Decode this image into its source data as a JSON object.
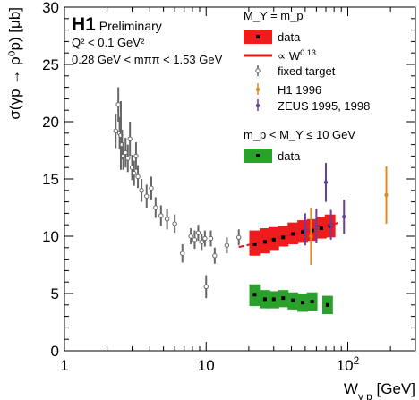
{
  "chart_data": {
    "type": "scatter",
    "xscale": "log",
    "xlim": [
      1,
      300
    ],
    "ylim": [
      0,
      30
    ],
    "xlabel": "W",
    "xlabel_sub": "γ p",
    "xlabel_unit": "[GeV]",
    "ylabel": "σ(γp → ρ⁰p) [μb]",
    "x_ticks": [
      {
        "value": 1,
        "base": "1",
        "exp": ""
      },
      {
        "value": 10,
        "base": "10",
        "exp": ""
      },
      {
        "value": 100,
        "base": "10",
        "exp": "2"
      }
    ],
    "y_ticks": [
      {
        "value": 0,
        "label": "0"
      },
      {
        "value": 5,
        "label": "5"
      },
      {
        "value": 10,
        "label": "10"
      },
      {
        "value": 15,
        "label": "15"
      },
      {
        "value": 20,
        "label": "20"
      },
      {
        "value": 25,
        "label": "25"
      },
      {
        "value": 30,
        "label": "30"
      }
    ],
    "header": {
      "experiment": "H1",
      "status": "Preliminary",
      "q2_cut": "Q² < 0.1 GeV²",
      "mass_window": "0.28 GeV < mππ < 1.53 GeV"
    },
    "legend_heading_elastic": "M_Y = m_p",
    "legend_heading_pdiss": "m_p < M_Y ≤ 10 GeV",
    "legend_placement": "top-right",
    "colors": {
      "elastic_fill": "#ee1c1c",
      "pdiss_fill": "#2ca02c",
      "fit_line": "#d81b1b",
      "fixed_target": "#666666",
      "h1_1996": "#e08a1e",
      "zeus": "#6a3d9a"
    },
    "series": [
      {
        "name": "data",
        "group": "elastic",
        "style": "box",
        "points": [
          {
            "x": 22,
            "y": 9.3,
            "lo": 8.3,
            "hi": 10.5
          },
          {
            "x": 26,
            "y": 9.5,
            "lo": 8.5,
            "hi": 10.7
          },
          {
            "x": 30,
            "y": 9.7,
            "lo": 8.8,
            "hi": 10.8
          },
          {
            "x": 35,
            "y": 9.9,
            "lo": 9.1,
            "hi": 10.9
          },
          {
            "x": 41,
            "y": 10.2,
            "lo": 9.3,
            "hi": 11.2
          },
          {
            "x": 48,
            "y": 10.4,
            "lo": 9.5,
            "hi": 11.4
          },
          {
            "x": 56,
            "y": 10.5,
            "lo": 9.6,
            "hi": 11.5
          },
          {
            "x": 65,
            "y": 10.7,
            "lo": 9.8,
            "hi": 11.7
          },
          {
            "x": 75,
            "y": 10.9,
            "lo": 9.9,
            "hi": 11.9
          }
        ]
      },
      {
        "name": "∝ W",
        "exponent": "0.13",
        "group": "elastic",
        "style": "fit",
        "x": [
          17,
          85
        ],
        "norm_x": 30,
        "norm_y": 9.75,
        "power": 0.13
      },
      {
        "name": "fixed target",
        "group": "elastic",
        "style": "open",
        "points": [
          {
            "x": 2.3,
            "y": 19.2,
            "err": 1.5
          },
          {
            "x": 2.4,
            "y": 21.5,
            "err": 1.5
          },
          {
            "x": 2.45,
            "y": 19.0,
            "err": 1.4
          },
          {
            "x": 2.5,
            "y": 18.8,
            "err": 3.0
          },
          {
            "x": 2.55,
            "y": 18.0,
            "err": 1.3
          },
          {
            "x": 2.6,
            "y": 17.0,
            "err": 1.2
          },
          {
            "x": 2.7,
            "y": 17.3,
            "err": 1.3
          },
          {
            "x": 2.8,
            "y": 16.8,
            "err": 1.2
          },
          {
            "x": 2.9,
            "y": 18.5,
            "err": 1.5
          },
          {
            "x": 3.0,
            "y": 16.0,
            "err": 1.1
          },
          {
            "x": 3.1,
            "y": 15.5,
            "err": 1.1
          },
          {
            "x": 3.2,
            "y": 17.0,
            "err": 1.2
          },
          {
            "x": 3.3,
            "y": 15.2,
            "err": 1.0
          },
          {
            "x": 3.5,
            "y": 14.0,
            "err": 1.0
          },
          {
            "x": 3.8,
            "y": 13.5,
            "err": 1.0
          },
          {
            "x": 4.1,
            "y": 14.2,
            "err": 1.0
          },
          {
            "x": 4.4,
            "y": 12.5,
            "err": 0.9
          },
          {
            "x": 4.8,
            "y": 11.8,
            "err": 0.9
          },
          {
            "x": 5.3,
            "y": 11.5,
            "err": 0.9
          },
          {
            "x": 6.0,
            "y": 11.1,
            "err": 0.8
          },
          {
            "x": 6.8,
            "y": 8.5,
            "err": 0.8
          },
          {
            "x": 7.8,
            "y": 10.0,
            "err": 0.7
          },
          {
            "x": 8.3,
            "y": 9.7,
            "err": 0.8
          },
          {
            "x": 8.8,
            "y": 10.3,
            "err": 0.7
          },
          {
            "x": 9.3,
            "y": 9.5,
            "err": 0.7
          },
          {
            "x": 9.8,
            "y": 9.8,
            "err": 0.7
          },
          {
            "x": 10.0,
            "y": 5.6,
            "err": 1.0
          },
          {
            "x": 10.8,
            "y": 9.8,
            "err": 0.7
          },
          {
            "x": 11.5,
            "y": 8.3,
            "err": 0.7
          },
          {
            "x": 14.0,
            "y": 9.2,
            "err": 0.7
          },
          {
            "x": 17.0,
            "y": 9.9,
            "err": 0.7
          }
        ]
      },
      {
        "name": "H1 1996",
        "group": "elastic",
        "style": "marker",
        "points": [
          {
            "x": 55,
            "y": 10.0,
            "err": 2.5
          },
          {
            "x": 187,
            "y": 13.6,
            "err": 2.5
          }
        ]
      },
      {
        "name": "ZEUS 1995, 1998",
        "group": "elastic",
        "style": "marker",
        "points": [
          {
            "x": 50,
            "y": 10.6,
            "err": 1.4
          },
          {
            "x": 60,
            "y": 10.9,
            "err": 1.5
          },
          {
            "x": 70,
            "y": 14.7,
            "err": 1.7
          },
          {
            "x": 76,
            "y": 11.0,
            "err": 1.3
          },
          {
            "x": 94,
            "y": 11.7,
            "err": 1.5
          }
        ]
      },
      {
        "name": "data",
        "group": "pdiss",
        "style": "box",
        "points": [
          {
            "x": 22,
            "y": 4.9,
            "lo": 3.9,
            "hi": 5.8
          },
          {
            "x": 26,
            "y": 4.5,
            "lo": 3.7,
            "hi": 5.3
          },
          {
            "x": 30,
            "y": 4.5,
            "lo": 3.7,
            "hi": 5.2
          },
          {
            "x": 35,
            "y": 4.6,
            "lo": 3.8,
            "hi": 5.3
          },
          {
            "x": 41,
            "y": 4.4,
            "lo": 3.6,
            "hi": 5.1
          },
          {
            "x": 48,
            "y": 4.2,
            "lo": 3.4,
            "hi": 5.0
          },
          {
            "x": 56,
            "y": 4.3,
            "lo": 3.5,
            "hi": 5.1
          },
          {
            "x": 72,
            "y": 4.0,
            "lo": 3.2,
            "hi": 4.8
          }
        ]
      }
    ]
  }
}
